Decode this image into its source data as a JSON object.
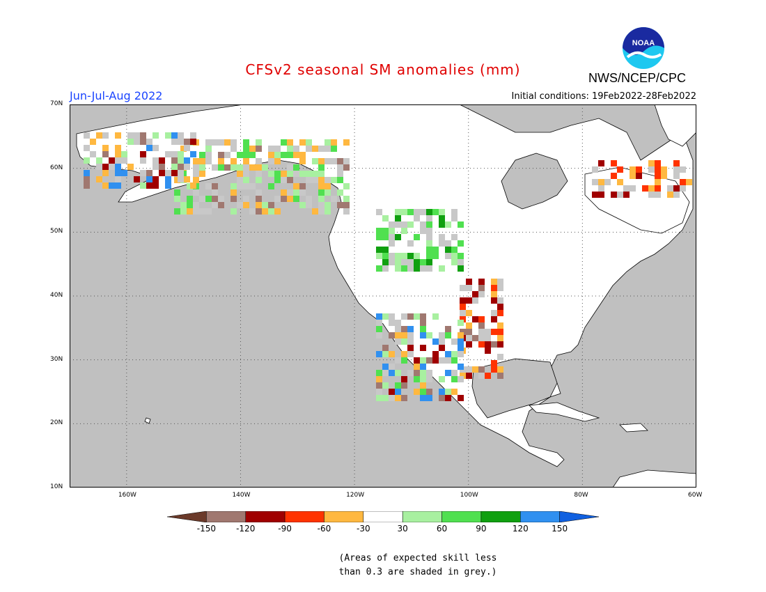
{
  "title": "CFSv2 seasonal SM anomalies (mm)",
  "season": "Jun-Jul-Aug 2022",
  "initial_conditions": "Initial conditions: 19Feb2022-28Feb2022",
  "agency": "NWS/NCEP/CPC",
  "logo_text": "NOAA",
  "map": {
    "lat_labels": [
      "70N",
      "60N",
      "50N",
      "40N",
      "30N",
      "20N",
      "10N"
    ],
    "lon_labels": [
      "160W",
      "140W",
      "120W",
      "100W",
      "80W",
      "60W"
    ],
    "lat_range": [
      10,
      70
    ],
    "lon_range": [
      -170,
      -60
    ],
    "ocean_color": "#c0c0c0",
    "land_color": "#ffffff",
    "low_skill_color": "#c8c8c8"
  },
  "colorbar": {
    "ticks": [
      "-150",
      "-120",
      "-90",
      "-60",
      "-30",
      "30",
      "60",
      "90",
      "120",
      "150"
    ],
    "colors": [
      "#6b3a2a",
      "#a07870",
      "#a00000",
      "#ff3300",
      "#ffb840",
      "#ffffff",
      "#a8f0a0",
      "#50e050",
      "#10a010",
      "#3090f0",
      "#1060e0"
    ]
  },
  "note": {
    "line1": "(Areas of expected skill less",
    "line2": "than 0.3 are shaded in grey.)"
  }
}
